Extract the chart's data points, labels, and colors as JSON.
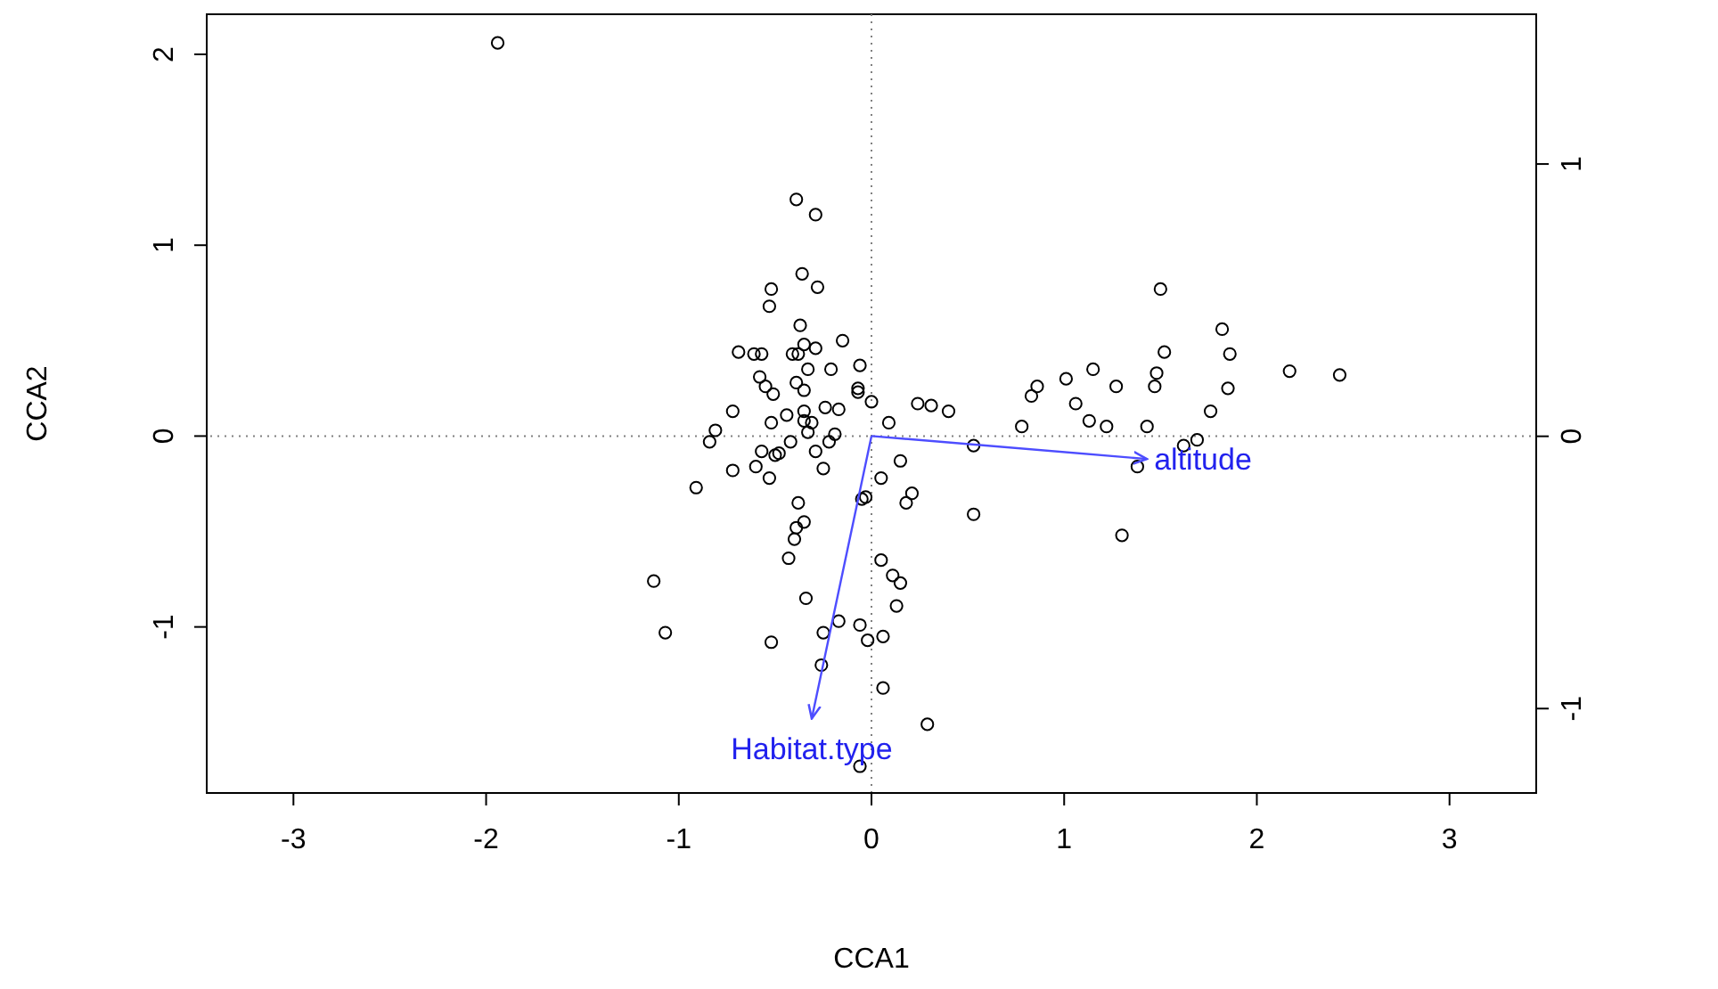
{
  "chart_data": {
    "type": "scatter",
    "xlabel": "CCA1",
    "ylabel": "CCA2",
    "xlim": [
      -3.45,
      3.45
    ],
    "xticks": [
      -3,
      -2,
      -1,
      0,
      1,
      2,
      3
    ],
    "ylim": [
      -1.87,
      2.21
    ],
    "yticks": [
      -1,
      0,
      1,
      2
    ],
    "y2lim": [
      -1.31,
      1.55
    ],
    "y2ticks": [
      -1,
      0,
      1
    ],
    "grid": false,
    "legend": false,
    "ref_lines": [
      {
        "axis": "x",
        "value": 0,
        "color": "#808080",
        "line_style": "dotted"
      },
      {
        "axis": "y",
        "value": 0,
        "color": "#808080",
        "line_style": "dotted"
      }
    ],
    "series": [
      {
        "color": "#000000",
        "marker": "circle",
        "x": [
          -1.94,
          -0.39,
          -0.29,
          -0.36,
          -0.28,
          -0.52,
          -0.53,
          -0.37,
          -0.15,
          -0.69,
          -0.61,
          -0.57,
          -0.41,
          -0.38,
          -0.35,
          -0.29,
          -0.06,
          -0.33,
          -0.21,
          -0.58,
          -0.39,
          -0.55,
          -0.51,
          -0.35,
          -0.07,
          -0.07,
          0.0,
          -0.72,
          -0.35,
          -0.24,
          -0.17,
          -0.44,
          -0.52,
          -0.31,
          -0.35,
          0.24,
          0.31,
          0.4,
          0.09,
          -0.81,
          -0.84,
          -0.33,
          -0.19,
          -0.42,
          -0.22,
          -0.57,
          -0.48,
          -0.5,
          -0.29,
          -0.72,
          -0.6,
          -0.25,
          -0.53,
          0.15,
          0.05,
          -0.91,
          -0.38,
          -0.05,
          -0.03,
          0.18,
          0.21,
          0.53,
          0.53,
          -0.35,
          -0.39,
          -0.4,
          -0.43,
          0.05,
          0.11,
          0.15,
          -1.13,
          -0.34,
          0.13,
          -1.07,
          -0.17,
          -0.25,
          -0.06,
          -0.02,
          0.06,
          -0.52,
          -0.26,
          0.06,
          0.29,
          -0.06,
          1.5,
          1.82,
          1.86,
          1.52,
          1.15,
          1.01,
          0.86,
          0.83,
          1.27,
          1.48,
          1.47,
          2.17,
          1.85,
          1.06,
          1.76,
          1.13,
          1.22,
          0.78,
          1.43,
          1.69,
          1.62,
          1.38,
          1.3,
          2.43
        ],
        "values": [
          2.06,
          1.24,
          1.16,
          0.85,
          0.78,
          0.77,
          0.68,
          0.58,
          0.5,
          0.44,
          0.43,
          0.43,
          0.43,
          0.43,
          0.48,
          0.46,
          0.37,
          0.35,
          0.35,
          0.31,
          0.28,
          0.26,
          0.22,
          0.24,
          0.25,
          0.23,
          0.18,
          0.13,
          0.13,
          0.15,
          0.14,
          0.11,
          0.07,
          0.07,
          0.08,
          0.17,
          0.16,
          0.13,
          0.07,
          0.03,
          -0.03,
          0.02,
          0.01,
          -0.03,
          -0.03,
          -0.08,
          -0.09,
          -0.1,
          -0.08,
          -0.18,
          -0.16,
          -0.17,
          -0.22,
          -0.13,
          -0.22,
          -0.27,
          -0.35,
          -0.33,
          -0.32,
          -0.35,
          -0.3,
          -0.05,
          -0.41,
          -0.45,
          -0.48,
          -0.54,
          -0.64,
          -0.65,
          -0.73,
          -0.77,
          -0.76,
          -0.85,
          -0.89,
          -1.03,
          -0.97,
          -1.03,
          -0.99,
          -1.07,
          -1.05,
          -1.08,
          -1.2,
          -1.32,
          -1.51,
          -1.73,
          0.77,
          0.56,
          0.43,
          0.44,
          0.35,
          0.3,
          0.26,
          0.21,
          0.26,
          0.33,
          0.26,
          0.34,
          0.25,
          0.17,
          0.13,
          0.08,
          0.05,
          0.05,
          0.05,
          -0.02,
          -0.05,
          -0.16,
          -0.52,
          0.32
        ]
      },
      {
        "type": "line",
        "name": "altitude",
        "color": "#4d4dff",
        "x": [
          0,
          1.43
        ],
        "values": [
          0,
          -0.12
        ]
      },
      {
        "type": "line",
        "name": "Habitat.type",
        "color": "#4d4dff",
        "x": [
          0,
          -0.31
        ],
        "values": [
          0,
          -1.48
        ]
      }
    ]
  }
}
